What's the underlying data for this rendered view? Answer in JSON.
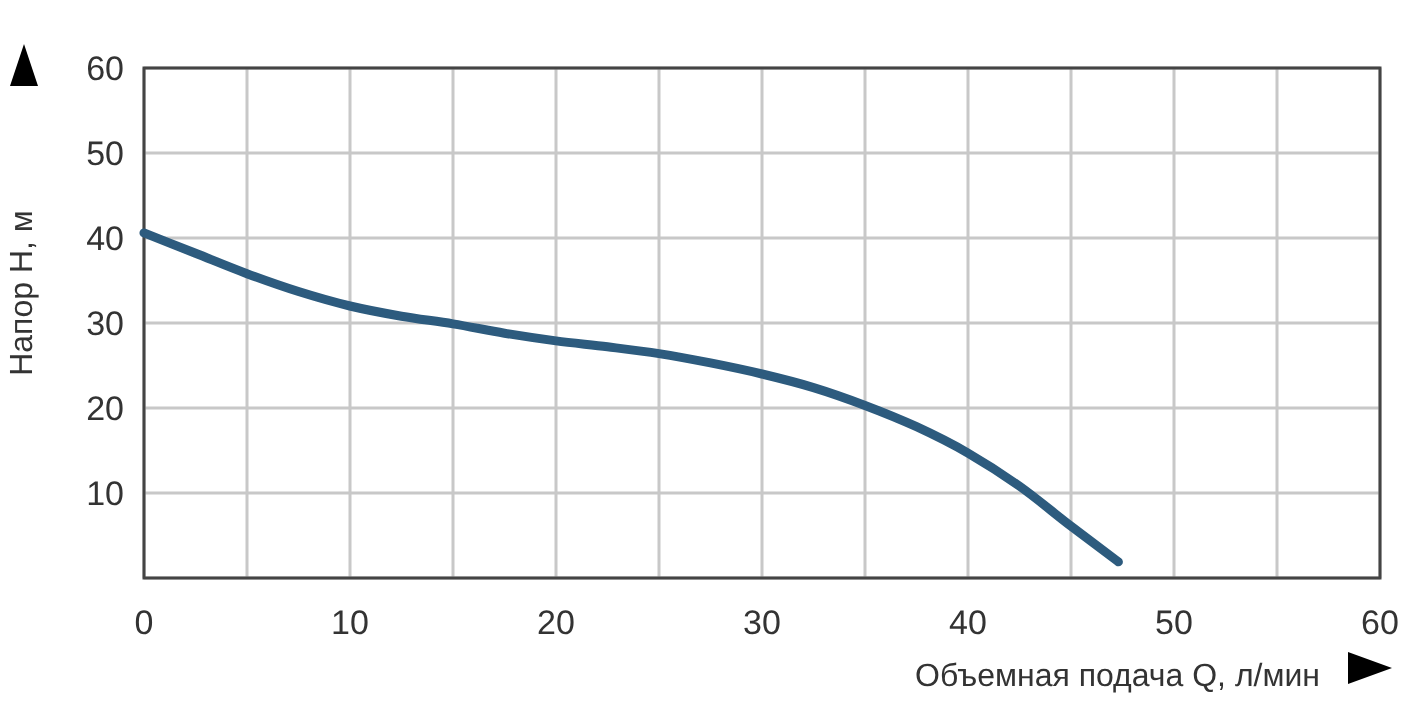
{
  "chart_data": {
    "type": "line",
    "xlabel": "Объемная подача Q, л/мин",
    "ylabel": "Напор H, м",
    "x": [
      0,
      2.5,
      5,
      7.5,
      10,
      12.5,
      15,
      17.5,
      20,
      22.5,
      25,
      27.5,
      30,
      32.5,
      35,
      37.5,
      40,
      42.5,
      45,
      47.3
    ],
    "series": [
      {
        "color": "#2d5b7e",
        "values": [
          40.6,
          38.2,
          35.8,
          33.7,
          32,
          30.8,
          29.9,
          28.8,
          27.9,
          27.2,
          26.4,
          25.3,
          24,
          22.4,
          20.3,
          17.8,
          14.7,
          10.8,
          6.1,
          1.9
        ]
      }
    ],
    "xlim": [
      0,
      60
    ],
    "ylim": [
      0,
      60
    ],
    "xticks": [
      0,
      {
        "value": 5,
        "label": null
      },
      10,
      {
        "value": 15,
        "label": null
      },
      20,
      {
        "value": 25,
        "label": null
      },
      30,
      {
        "value": 35,
        "label": null
      },
      40,
      {
        "value": 45,
        "label": null
      },
      50,
      {
        "value": 55,
        "label": null
      },
      60
    ],
    "yticks": [
      {
        "value": 0,
        "label": null
      },
      10,
      20,
      30,
      40,
      50,
      60
    ],
    "grid": true,
    "marker": "none",
    "line_style": "solid"
  }
}
